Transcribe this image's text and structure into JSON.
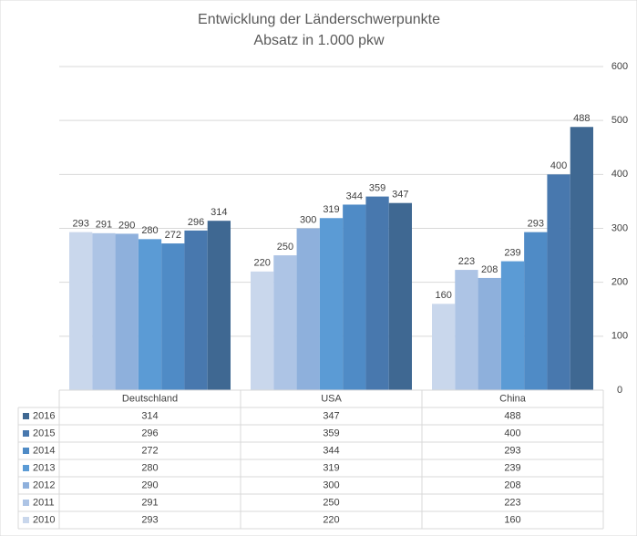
{
  "chart_data": {
    "type": "bar",
    "title": "Entwicklung der Länderschwerpunkte",
    "subtitle": "Absatz in 1.000 pkw",
    "categories": [
      "Deutschland",
      "USA",
      "China"
    ],
    "series": [
      {
        "name": "2010",
        "color": "#c9d7ec",
        "values": [
          293,
          220,
          160
        ]
      },
      {
        "name": "2011",
        "color": "#adc4e5",
        "values": [
          291,
          250,
          223
        ]
      },
      {
        "name": "2012",
        "color": "#8eb0dc",
        "values": [
          290,
          300,
          208
        ]
      },
      {
        "name": "2013",
        "color": "#5b9bd5",
        "values": [
          280,
          319,
          239
        ]
      },
      {
        "name": "2014",
        "color": "#4f8bc6",
        "values": [
          272,
          344,
          293
        ]
      },
      {
        "name": "2015",
        "color": "#4878ae",
        "values": [
          296,
          359,
          400
        ]
      },
      {
        "name": "2016",
        "color": "#3f6892",
        "values": [
          314,
          347,
          488
        ]
      }
    ],
    "ylim": [
      0,
      600
    ],
    "yticks": [
      0,
      100,
      200,
      300,
      400,
      500,
      600
    ],
    "grid": true,
    "data_table": true
  }
}
